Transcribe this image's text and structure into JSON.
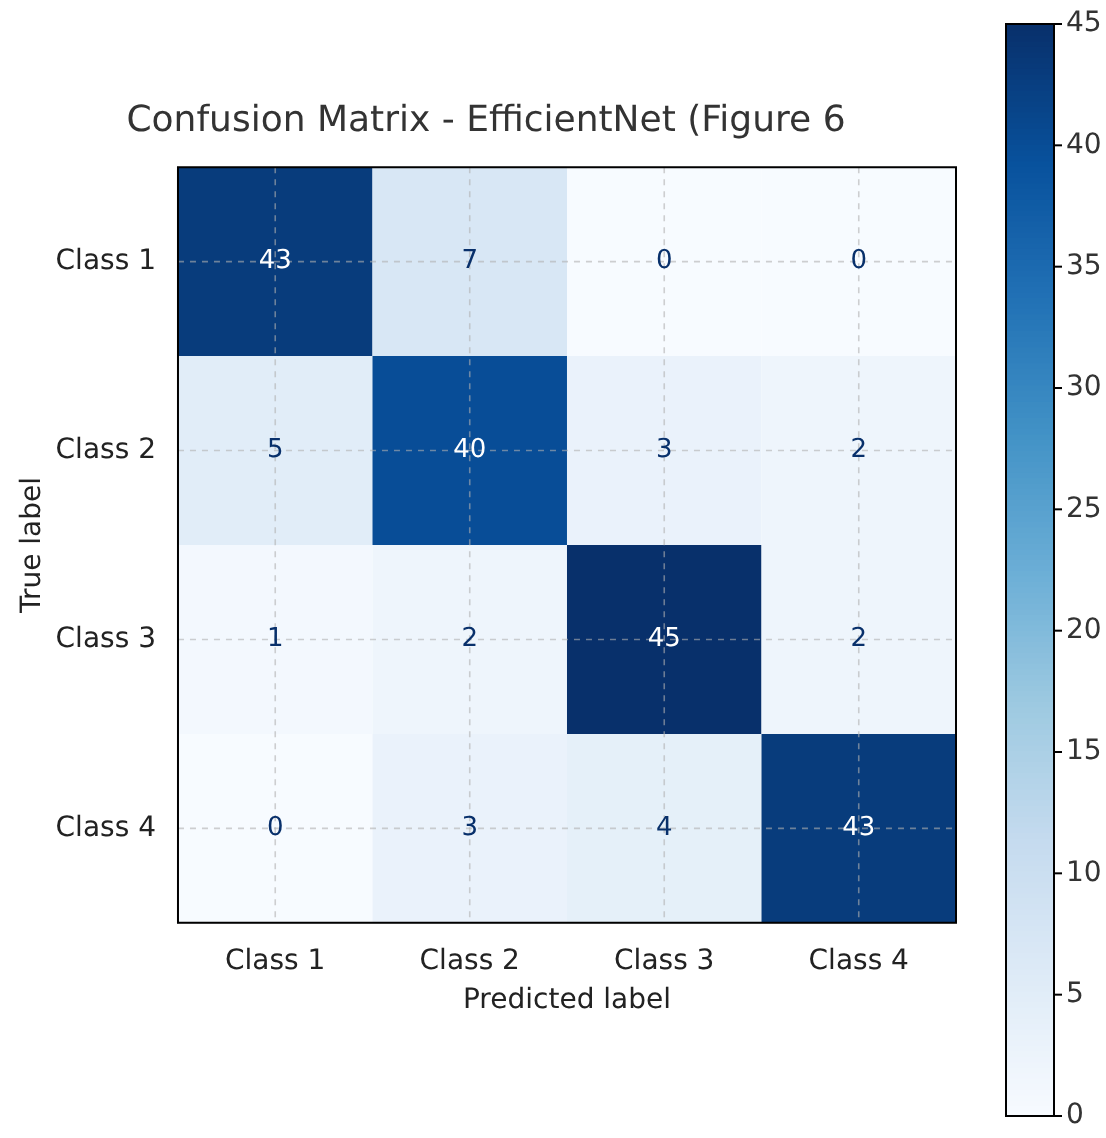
{
  "chart_data": {
    "type": "heatmap",
    "title": "Confusion Matrix - EfficientNet (Figure 6",
    "xlabel": "Predicted label",
    "ylabel": "True label",
    "categories": [
      "Class 1",
      "Class 2",
      "Class 3",
      "Class 4"
    ],
    "y_categories": [
      "Class 1",
      "Class 2",
      "Class 3",
      "Class 4"
    ],
    "cells": [
      [
        43,
        7,
        0,
        0
      ],
      [
        5,
        40,
        3,
        2
      ],
      [
        1,
        2,
        45,
        2
      ],
      [
        0,
        3,
        4,
        43
      ]
    ],
    "data_labels": true,
    "grid": true,
    "clim": [
      0,
      45
    ],
    "cticks": [
      0,
      5,
      10,
      15,
      20,
      25,
      30,
      35,
      40,
      45
    ]
  }
}
